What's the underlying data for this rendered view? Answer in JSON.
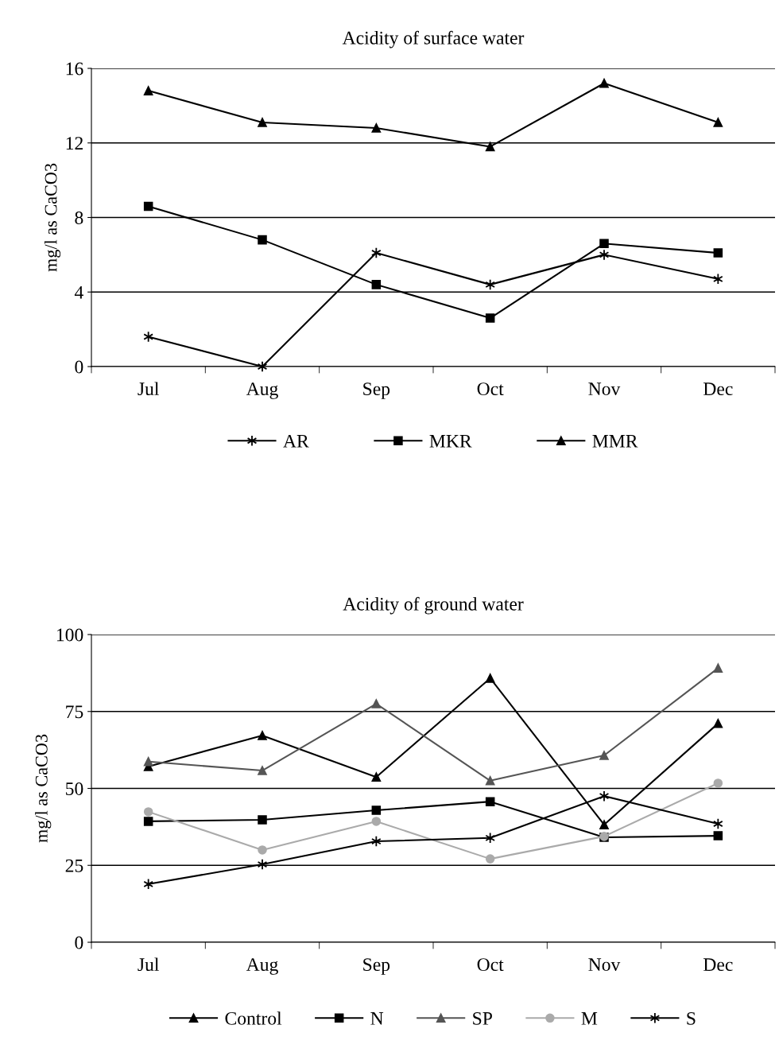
{
  "chart_data": [
    {
      "type": "line",
      "title": "Acidity of surface water",
      "ylabel": "mg/l as CaCO3",
      "categories": [
        "Jul",
        "Aug",
        "Sep",
        "Oct",
        "Nov",
        "Dec"
      ],
      "ylim": [
        0,
        16
      ],
      "yticks": [
        0,
        4,
        8,
        12,
        16
      ],
      "grid": "y",
      "legend": "bottom",
      "line_style": "solid",
      "series": [
        {
          "name": "AR",
          "color": "#000000",
          "marker": "cross",
          "values": [
            1.6,
            0,
            6.1,
            4.4,
            6.0,
            4.7
          ]
        },
        {
          "name": "MKR",
          "color": "#000000",
          "marker": "square",
          "values": [
            8.6,
            6.8,
            4.4,
            2.6,
            6.6,
            6.1
          ]
        },
        {
          "name": "MMR",
          "color": "#000000",
          "marker": "triangle",
          "values": [
            14.8,
            13.1,
            12.8,
            11.8,
            15.2,
            13.1
          ]
        }
      ]
    },
    {
      "type": "line",
      "title": "Acidity of ground water",
      "ylabel": "mg/l as CaCO3",
      "categories": [
        "Jul",
        "Aug",
        "Sep",
        "Oct",
        "Nov",
        "Dec"
      ],
      "ylim": [
        0,
        100
      ],
      "yticks": [
        0,
        25,
        50,
        75,
        100
      ],
      "grid": "y",
      "legend": "bottom",
      "line_style": "solid",
      "series": [
        {
          "name": "Control",
          "color": "#000000",
          "marker": "triangle",
          "values": [
            57.1,
            67.2,
            53.7,
            85.8,
            38.2,
            71.1
          ]
        },
        {
          "name": "N",
          "color": "#000000",
          "marker": "square",
          "values": [
            39.3,
            39.8,
            42.9,
            45.7,
            34.1,
            34.6
          ]
        },
        {
          "name": "SP",
          "color": "#555555",
          "marker": "triangle",
          "values": [
            58.7,
            55.8,
            77.5,
            52.5,
            60.7,
            89.1
          ]
        },
        {
          "name": "M",
          "color": "#aaaaaa",
          "marker": "circle",
          "values": [
            42.4,
            30.0,
            39.3,
            27.1,
            34.4,
            51.7
          ]
        },
        {
          "name": "S",
          "color": "#000000",
          "marker": "cross",
          "values": [
            18.9,
            25.3,
            32.8,
            33.9,
            47.5,
            38.5
          ]
        }
      ]
    }
  ]
}
